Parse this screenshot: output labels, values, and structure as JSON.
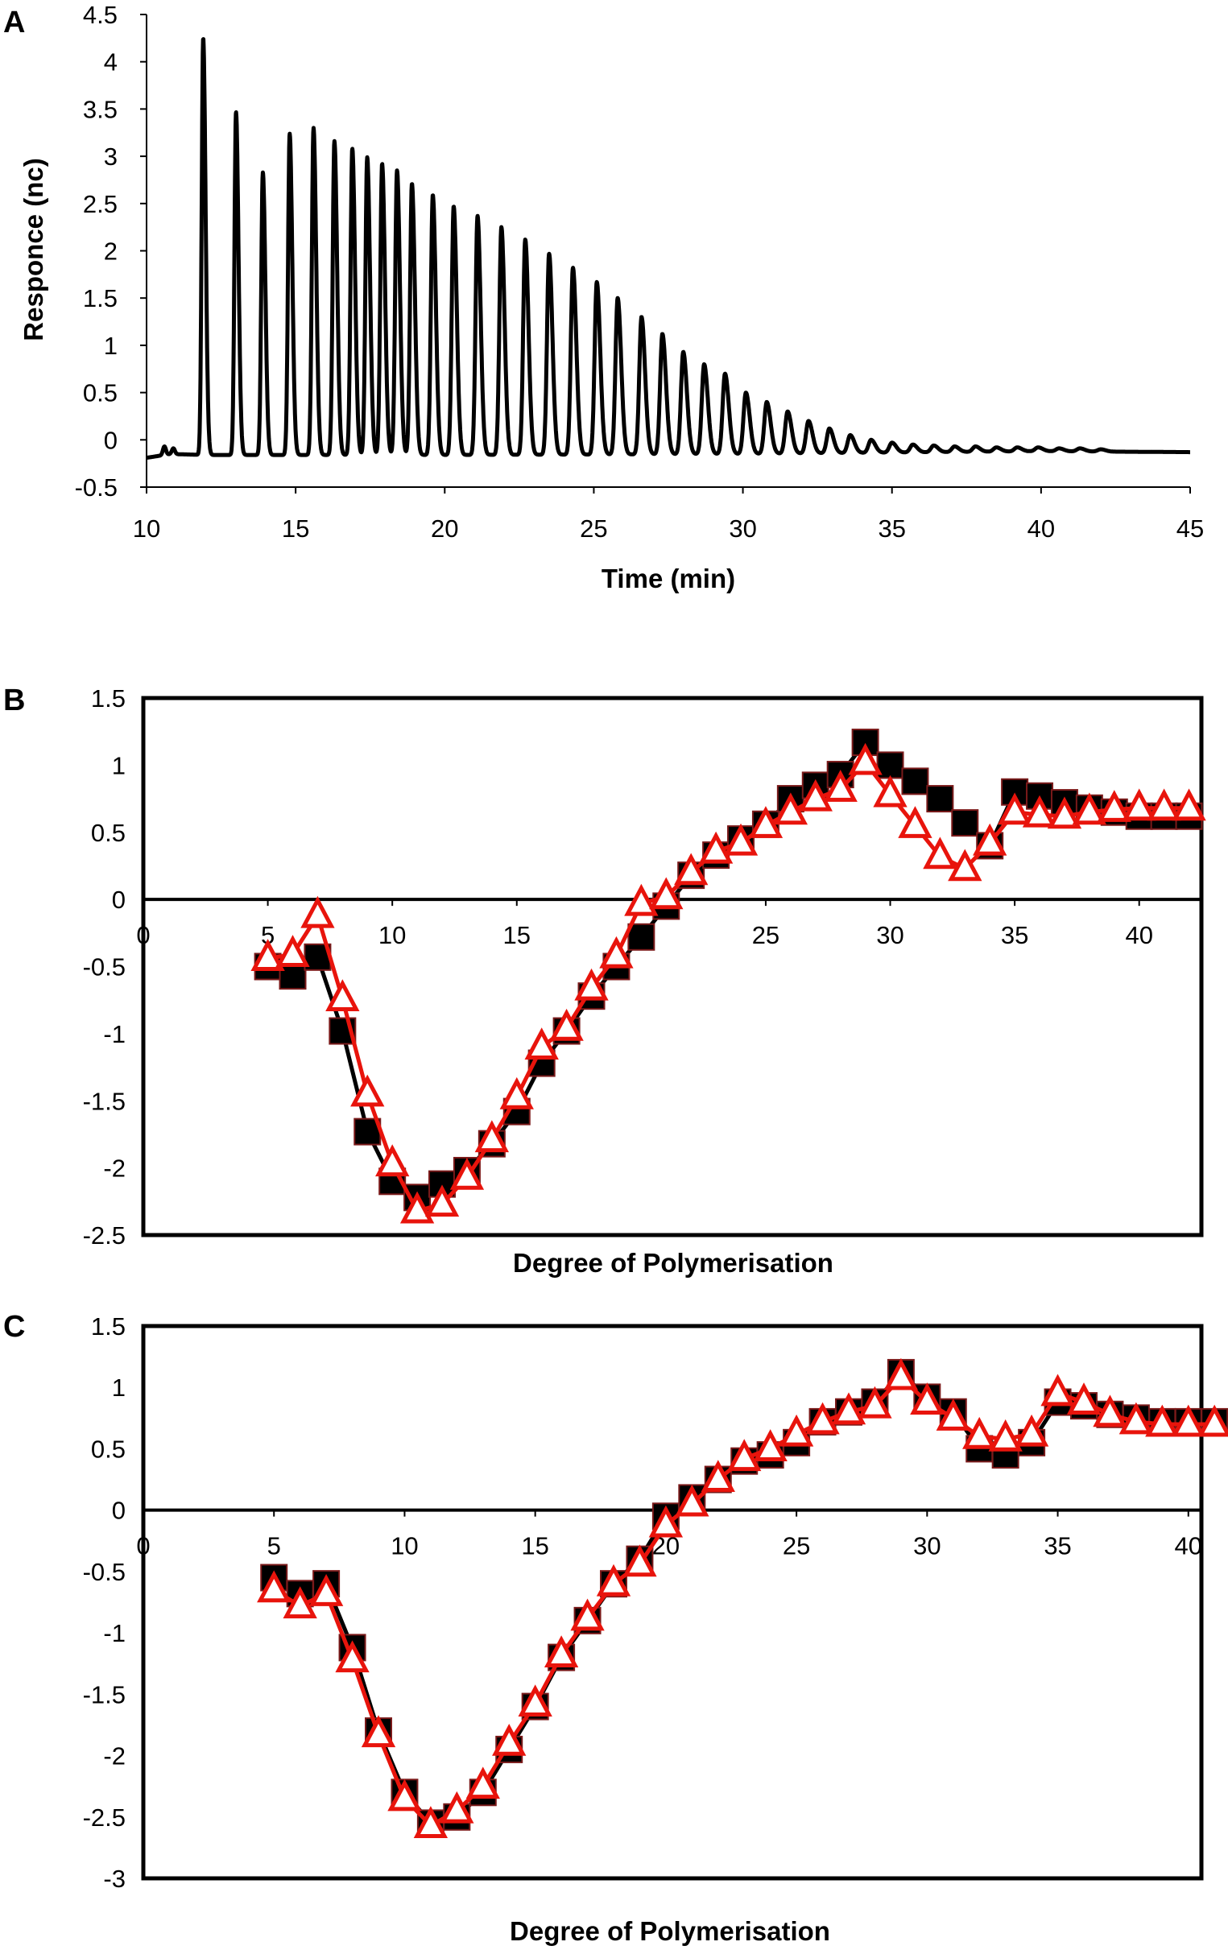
{
  "chart_data": [
    {
      "panel": "A",
      "type": "line",
      "title": "",
      "xlabel": "Time (min)",
      "ylabel": "Responce (nc)",
      "xlim": [
        10,
        45
      ],
      "ylim": [
        -0.5,
        4.5
      ],
      "xticks": [
        "10",
        "15",
        "20",
        "25",
        "30",
        "35",
        "40",
        "45"
      ],
      "yticks": [
        "-0.5",
        "0",
        "0.5",
        "1",
        "1.5",
        "2",
        "2.5",
        "3",
        "3.5",
        "4",
        "4.5"
      ],
      "baseline": {
        "x": [
          10,
          10.8,
          12,
          20,
          30,
          40,
          45
        ],
        "y": [
          -0.19,
          -0.15,
          -0.16,
          -0.16,
          -0.15,
          -0.12,
          -0.13
        ]
      },
      "small_peaks": {
        "t": [
          10.6,
          10.9
        ],
        "h": [
          -0.07,
          -0.09
        ]
      },
      "peaks": {
        "t": [
          11.9,
          13.0,
          13.9,
          14.8,
          15.6,
          16.3,
          16.9,
          17.4,
          17.9,
          18.4,
          18.9,
          19.6,
          20.3,
          21.1,
          21.9,
          22.7,
          23.5,
          24.3,
          25.1,
          25.8,
          26.6,
          27.3,
          28.0,
          28.7,
          29.4,
          30.1,
          30.8,
          31.5,
          32.2,
          32.9,
          33.6,
          34.3,
          35.0,
          35.7,
          36.4,
          37.1,
          37.8,
          38.5,
          39.2,
          39.9,
          40.6,
          41.3,
          42.0
        ],
        "h": [
          4.25,
          3.47,
          2.83,
          3.24,
          3.3,
          3.16,
          3.08,
          2.99,
          2.92,
          2.85,
          2.71,
          2.59,
          2.47,
          2.37,
          2.25,
          2.12,
          1.97,
          1.82,
          1.67,
          1.5,
          1.3,
          1.12,
          0.93,
          0.8,
          0.7,
          0.5,
          0.4,
          0.3,
          0.2,
          0.12,
          0.05,
          0.0,
          -0.03,
          -0.05,
          -0.06,
          -0.07,
          -0.07,
          -0.08,
          -0.08,
          -0.08,
          -0.09,
          -0.09,
          -0.1
        ]
      }
    },
    {
      "panel": "B",
      "type": "line",
      "title": "",
      "xlabel": "Degree of Polymerisation",
      "ylabel": "",
      "xlim": [
        0,
        42.5
      ],
      "ylim": [
        -2.5,
        1.5
      ],
      "xticks": [
        "0",
        "5",
        "10",
        "15",
        "20",
        "25",
        "30",
        "35",
        "40"
      ],
      "yticks": [
        "-2.5",
        "-2",
        "-1.5",
        "-1",
        "-0.5",
        "0",
        "0.5",
        "1",
        "1.5"
      ],
      "series": [
        {
          "name": "squares",
          "marker": "square",
          "color": "#000000",
          "x": [
            5,
            6,
            7,
            8,
            9,
            10,
            11,
            12,
            13,
            14,
            15,
            16,
            17,
            18,
            19,
            20,
            21,
            22,
            23,
            24,
            25,
            26,
            27,
            28,
            29,
            30,
            31,
            32,
            33,
            34,
            35,
            36,
            37,
            38,
            39,
            40,
            41,
            42
          ],
          "y": [
            -0.5,
            -0.57,
            -0.43,
            -0.98,
            -1.73,
            -2.1,
            -2.22,
            -2.12,
            -2.02,
            -1.82,
            -1.58,
            -1.22,
            -0.98,
            -0.72,
            -0.5,
            -0.28,
            -0.05,
            0.18,
            0.33,
            0.45,
            0.56,
            0.75,
            0.85,
            0.93,
            1.17,
            1.0,
            0.88,
            0.75,
            0.57,
            0.4,
            0.8,
            0.77,
            0.72,
            0.68,
            0.65,
            0.62,
            0.62,
            0.62
          ]
        },
        {
          "name": "triangles",
          "marker": "triangle",
          "color": "#e8140c",
          "x": [
            5,
            6,
            7,
            8,
            9,
            10,
            11,
            12,
            13,
            14,
            15,
            16,
            17,
            18,
            19,
            20,
            21,
            22,
            23,
            24,
            25,
            26,
            27,
            28,
            29,
            30,
            31,
            32,
            33,
            34,
            35,
            36,
            37,
            38,
            39,
            40,
            41,
            42
          ],
          "y": [
            -0.44,
            -0.41,
            -0.12,
            -0.74,
            -1.45,
            -1.97,
            -2.32,
            -2.27,
            -2.07,
            -1.79,
            -1.47,
            -1.1,
            -0.96,
            -0.66,
            -0.42,
            -0.03,
            0.02,
            0.2,
            0.36,
            0.42,
            0.55,
            0.65,
            0.75,
            0.82,
            1.02,
            0.78,
            0.55,
            0.32,
            0.23,
            0.42,
            0.65,
            0.63,
            0.62,
            0.65,
            0.67,
            0.68,
            0.68,
            0.68
          ]
        }
      ]
    },
    {
      "panel": "C",
      "type": "line",
      "title": "",
      "xlabel": "Degree of Polymerisation",
      "ylabel": "",
      "xlim": [
        0,
        40.5
      ],
      "ylim": [
        -3,
        1.5
      ],
      "xticks": [
        "0",
        "5",
        "10",
        "15",
        "20",
        "25",
        "30",
        "35",
        "40"
      ],
      "yticks": [
        "-3",
        "-2.5",
        "-2",
        "-1.5",
        "-1",
        "-0.5",
        "0",
        "0.5",
        "1",
        "1.5"
      ],
      "series": [
        {
          "name": "squares",
          "marker": "square",
          "color": "#000000",
          "x": [
            5,
            6,
            7,
            8,
            9,
            10,
            11,
            12,
            13,
            14,
            15,
            16,
            17,
            18,
            19,
            20,
            21,
            22,
            23,
            24,
            25,
            26,
            27,
            28,
            29,
            30,
            31,
            32,
            33,
            34,
            35,
            36,
            37,
            38,
            39,
            40,
            41
          ],
          "y": [
            -0.55,
            -0.68,
            -0.6,
            -1.12,
            -1.8,
            -2.3,
            -2.55,
            -2.5,
            -2.3,
            -1.95,
            -1.6,
            -1.2,
            -0.9,
            -0.6,
            -0.4,
            -0.05,
            0.1,
            0.25,
            0.4,
            0.45,
            0.55,
            0.72,
            0.8,
            0.88,
            1.12,
            0.92,
            0.8,
            0.5,
            0.45,
            0.55,
            0.88,
            0.85,
            0.78,
            0.75,
            0.72,
            0.72,
            0.72
          ]
        },
        {
          "name": "triangles",
          "marker": "triangle",
          "color": "#e8140c",
          "x": [
            5,
            6,
            7,
            8,
            9,
            10,
            11,
            12,
            13,
            14,
            15,
            16,
            17,
            18,
            19,
            20,
            21,
            22,
            23,
            24,
            25,
            26,
            27,
            28,
            29,
            30,
            31,
            32,
            33,
            34,
            35,
            36,
            37,
            38,
            39,
            40,
            41
          ],
          "y": [
            -0.65,
            -0.78,
            -0.68,
            -1.22,
            -1.83,
            -2.35,
            -2.57,
            -2.45,
            -2.25,
            -1.9,
            -1.58,
            -1.18,
            -0.88,
            -0.6,
            -0.44,
            -0.12,
            0.05,
            0.25,
            0.42,
            0.5,
            0.62,
            0.72,
            0.8,
            0.85,
            1.08,
            0.88,
            0.75,
            0.6,
            0.58,
            0.62,
            0.95,
            0.88,
            0.78,
            0.72,
            0.7,
            0.7,
            0.7
          ]
        }
      ]
    }
  ]
}
